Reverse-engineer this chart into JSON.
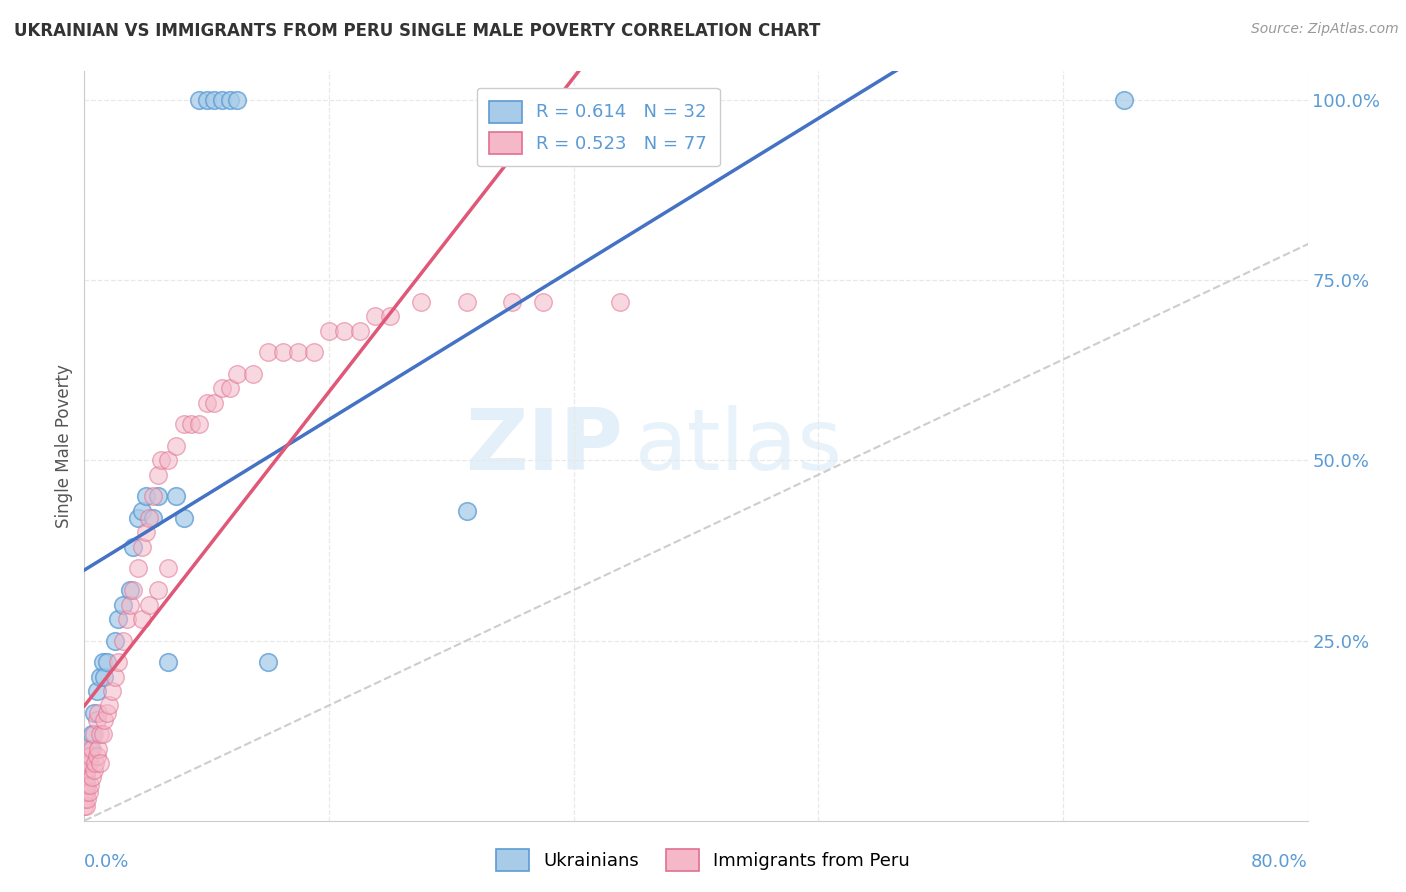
{
  "title": "UKRAINIAN VS IMMIGRANTS FROM PERU SINGLE MALE POVERTY CORRELATION CHART",
  "source": "Source: ZipAtlas.com",
  "ylabel": "Single Male Poverty",
  "xlim": [
    0.0,
    0.8
  ],
  "ylim": [
    0.0,
    1.04
  ],
  "watermark_zip": "ZIP",
  "watermark_atlas": "atlas",
  "blue_color": "#a8cce8",
  "blue_edge_color": "#5b9bd5",
  "pink_color": "#f4b8c8",
  "pink_edge_color": "#e07090",
  "blue_line_color": "#4472c4",
  "pink_line_color": "#e05878",
  "ref_line_color": "#c8c8c8",
  "grid_color": "#e8e8e8",
  "tick_color": "#5b9bd5",
  "title_color": "#333333",
  "ylabel_color": "#555555",
  "legend_R_label1": "R = 0.614   N = 32",
  "legend_R_label2": "R = 0.523   N = 77",
  "legend_label1": "Ukrainians",
  "legend_label2": "Immigrants from Peru",
  "ukrainians_x": [
    0.001,
    0.003,
    0.004,
    0.005,
    0.006,
    0.008,
    0.01,
    0.012,
    0.013,
    0.015,
    0.02,
    0.022,
    0.025,
    0.03,
    0.032,
    0.035,
    0.038,
    0.04,
    0.045,
    0.048,
    0.055,
    0.06,
    0.065,
    0.075,
    0.08,
    0.085,
    0.09,
    0.095,
    0.1,
    0.12,
    0.25,
    0.68
  ],
  "ukrainians_y": [
    0.05,
    0.08,
    0.1,
    0.12,
    0.15,
    0.18,
    0.2,
    0.22,
    0.2,
    0.22,
    0.25,
    0.28,
    0.3,
    0.32,
    0.38,
    0.42,
    0.43,
    0.45,
    0.42,
    0.45,
    0.22,
    0.45,
    0.42,
    1.0,
    1.0,
    1.0,
    1.0,
    1.0,
    1.0,
    0.22,
    0.43,
    1.0
  ],
  "peru_x": [
    0.0,
    0.0,
    0.0,
    0.0,
    0.0,
    0.0,
    0.0,
    0.0,
    0.0,
    0.001,
    0.001,
    0.001,
    0.002,
    0.002,
    0.002,
    0.003,
    0.003,
    0.004,
    0.004,
    0.005,
    0.005,
    0.006,
    0.006,
    0.007,
    0.008,
    0.008,
    0.009,
    0.009,
    0.01,
    0.01,
    0.012,
    0.013,
    0.015,
    0.016,
    0.018,
    0.02,
    0.022,
    0.025,
    0.028,
    0.03,
    0.032,
    0.035,
    0.038,
    0.04,
    0.042,
    0.045,
    0.048,
    0.05,
    0.055,
    0.06,
    0.065,
    0.07,
    0.075,
    0.08,
    0.085,
    0.09,
    0.095,
    0.1,
    0.11,
    0.12,
    0.13,
    0.14,
    0.15,
    0.16,
    0.17,
    0.18,
    0.19,
    0.2,
    0.22,
    0.25,
    0.28,
    0.3,
    0.35,
    0.038,
    0.042,
    0.048,
    0.055
  ],
  "peru_y": [
    0.02,
    0.03,
    0.04,
    0.05,
    0.06,
    0.07,
    0.08,
    0.09,
    0.1,
    0.02,
    0.04,
    0.06,
    0.03,
    0.05,
    0.07,
    0.04,
    0.08,
    0.05,
    0.09,
    0.06,
    0.1,
    0.07,
    0.12,
    0.08,
    0.09,
    0.14,
    0.1,
    0.15,
    0.08,
    0.12,
    0.12,
    0.14,
    0.15,
    0.16,
    0.18,
    0.2,
    0.22,
    0.25,
    0.28,
    0.3,
    0.32,
    0.35,
    0.38,
    0.4,
    0.42,
    0.45,
    0.48,
    0.5,
    0.5,
    0.52,
    0.55,
    0.55,
    0.55,
    0.58,
    0.58,
    0.6,
    0.6,
    0.62,
    0.62,
    0.65,
    0.65,
    0.65,
    0.65,
    0.68,
    0.68,
    0.68,
    0.7,
    0.7,
    0.72,
    0.72,
    0.72,
    0.72,
    0.72,
    0.28,
    0.3,
    0.32,
    0.35
  ]
}
